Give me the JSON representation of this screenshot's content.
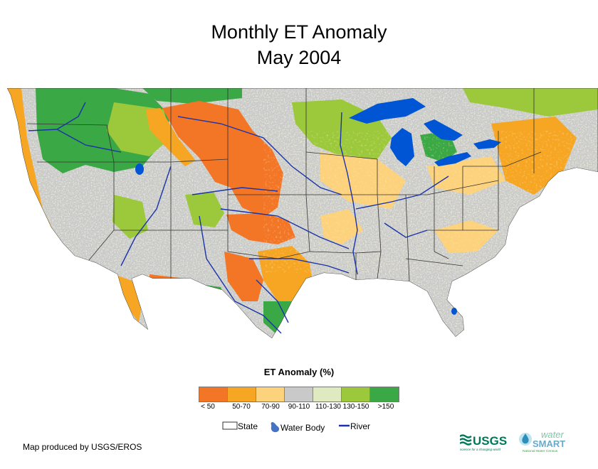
{
  "title_line1": "Monthly ET Anomaly",
  "title_line2": "May 2004",
  "legend": {
    "title": "ET Anomaly (%)",
    "classes": [
      {
        "label": "< 50",
        "color": "#f37526"
      },
      {
        "label": "50-70",
        "color": "#f6a623"
      },
      {
        "label": "70-90",
        "color": "#fdd27d"
      },
      {
        "label": "90-110",
        "color": "#c9c9c9"
      },
      {
        "label": "110-130",
        "color": "#dfeac0"
      },
      {
        "label": "130-150",
        "color": "#9bc93b"
      },
      {
        "label": ">150",
        "color": "#3aa844"
      }
    ],
    "key": {
      "state": "State",
      "water_body": "Water Body",
      "river": "River"
    }
  },
  "credit": "Map produced by USGS/EROS",
  "logos": {
    "usgs": "USGS",
    "usgs_tagline": "science for a changing world",
    "water": "water",
    "smart": "SMART",
    "smart_tagline": "National Water Census"
  },
  "colors": {
    "water": "#0055d4",
    "river": "#1a33a8",
    "state_line": "#333333",
    "usgs_green": "#00785a"
  }
}
